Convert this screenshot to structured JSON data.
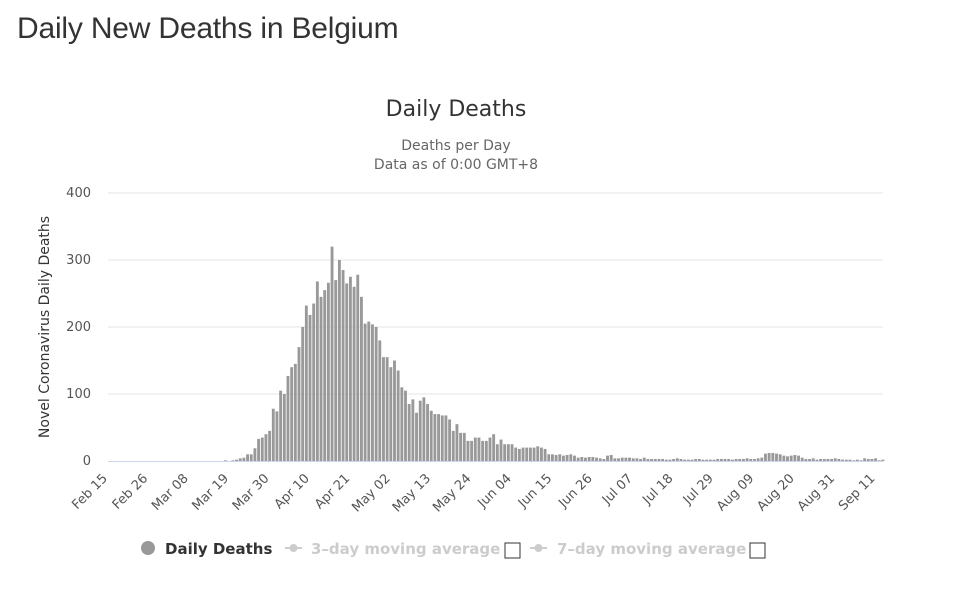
{
  "page": {
    "heading": "Daily New Deaths in Belgium"
  },
  "colors": {
    "bar": "#999999",
    "grid": "#e6e6e6",
    "legend_active": "#333333",
    "legend_hidden": "#cccccc",
    "axis_line": "#ccd6eb"
  },
  "chart_data": {
    "type": "bar",
    "title": "Daily Deaths",
    "subtitle_lines": [
      "Deaths per Day",
      "Data as of 0:00 GMT+8"
    ],
    "xlabel": "",
    "ylabel": "Novel Coronavirus Daily Deaths",
    "ylim": [
      0,
      400
    ],
    "y_ticks": [
      0,
      100,
      200,
      300,
      400
    ],
    "x_tick_labels": [
      "Feb 15",
      "Feb 26",
      "Mar 08",
      "Mar 19",
      "Mar 30",
      "Apr 10",
      "Apr 21",
      "May 02",
      "May 13",
      "May 24",
      "Jun 04",
      "Jun 15",
      "Jun 26",
      "Jul 07",
      "Jul 18",
      "Jul 29",
      "Aug 09",
      "Aug 20",
      "Aug 31",
      "Sep 11"
    ],
    "x_tick_interval_days": 11,
    "start_date": "Feb 15",
    "series": [
      {
        "name": "Daily Deaths",
        "values": [
          0,
          0,
          0,
          0,
          0,
          0,
          0,
          0,
          0,
          0,
          0,
          0,
          0,
          0,
          0,
          0,
          0,
          0,
          0,
          0,
          0,
          0,
          0,
          0,
          0,
          0,
          0,
          0,
          0,
          0,
          0,
          0,
          1,
          0,
          1,
          2,
          4,
          5,
          10,
          10,
          19,
          33,
          35,
          40,
          45,
          78,
          74,
          105,
          100,
          127,
          140,
          145,
          170,
          200,
          232,
          218,
          235,
          268,
          245,
          255,
          266,
          320,
          270,
          300,
          285,
          265,
          275,
          260,
          278,
          245,
          205,
          208,
          204,
          200,
          180,
          155,
          155,
          140,
          150,
          135,
          110,
          105,
          85,
          92,
          72,
          90,
          95,
          85,
          75,
          70,
          70,
          68,
          68,
          62,
          45,
          55,
          42,
          42,
          30,
          30,
          35,
          35,
          30,
          30,
          35,
          40,
          25,
          32,
          25,
          25,
          25,
          20,
          18,
          20,
          20,
          20,
          20,
          22,
          20,
          18,
          10,
          10,
          9,
          10,
          8,
          9,
          10,
          8,
          5,
          6,
          5,
          6,
          6,
          5,
          4,
          3,
          8,
          9,
          4,
          4,
          5,
          5,
          5,
          4,
          4,
          3,
          5,
          3,
          3,
          3,
          3,
          3,
          2,
          2,
          3,
          4,
          3,
          2,
          2,
          2,
          3,
          3,
          2,
          2,
          2,
          2,
          3,
          3,
          3,
          3,
          2,
          3,
          3,
          3,
          4,
          3,
          3,
          4,
          5,
          11,
          12,
          12,
          11,
          10,
          8,
          7,
          8,
          9,
          8,
          5,
          3,
          3,
          4,
          2,
          3,
          3,
          3,
          3,
          4,
          3,
          2,
          2,
          2,
          1,
          2,
          1,
          4,
          3,
          3,
          4,
          1,
          2
        ]
      }
    ],
    "legend": [
      {
        "label": "Daily Deaths",
        "visible": true
      },
      {
        "label": "3–day moving average",
        "visible": false
      },
      {
        "label": "7–day moving average",
        "visible": false
      }
    ]
  }
}
